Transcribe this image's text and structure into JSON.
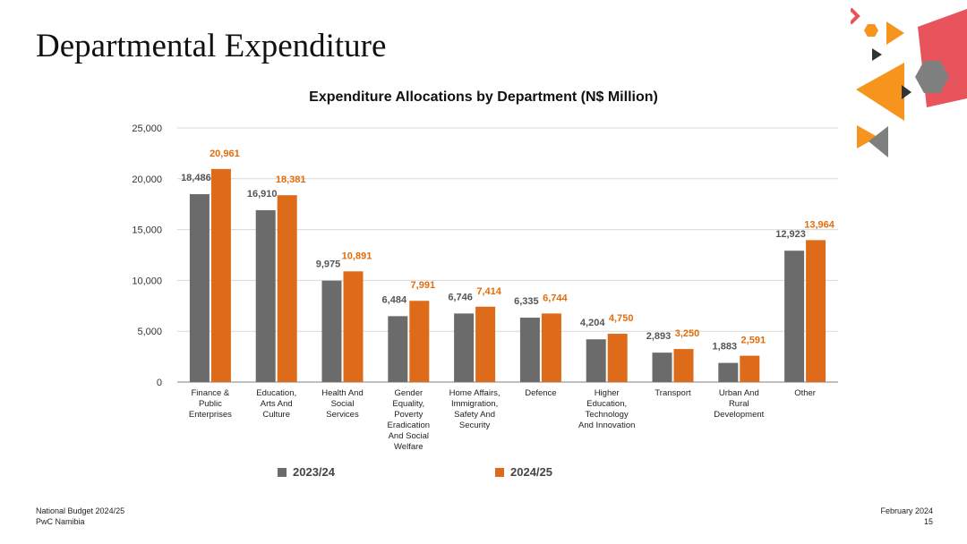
{
  "slide": {
    "title": "Departmental Expenditure",
    "footer_left_line1": "National Budget 2024/25",
    "footer_left_line2": "PwC Namibia",
    "footer_right_line1": "February 2024",
    "footer_right_line2": "15"
  },
  "colors": {
    "series_2023": "#6b6b6b",
    "series_2024": "#dd6b1a",
    "label_2023": "#555555",
    "label_2024": "#e36c0a",
    "grid": "#d9d9d9",
    "axis": "#7f7f7f",
    "decor_orange": "#f7941d",
    "decor_red": "#e8545c",
    "decor_gray": "#7f7f7f",
    "decor_dark": "#333333"
  },
  "chart_data": {
    "type": "bar",
    "title": "Expenditure Allocations by Department (N$ Million)",
    "xlabel": "",
    "ylabel": "",
    "ylim": [
      0,
      25000
    ],
    "yticks": [
      0,
      5000,
      10000,
      15000,
      20000,
      25000
    ],
    "ytick_labels": [
      "0",
      "5,000",
      "10,000",
      "15,000",
      "20,000",
      "25,000"
    ],
    "grid": true,
    "legend_position": "bottom",
    "categories": [
      [
        "Finance &",
        "Public",
        "Enterprises"
      ],
      [
        "Education,",
        "Arts And",
        "Culture"
      ],
      [
        "Health And",
        "Social",
        "Services"
      ],
      [
        "Gender",
        "Equality,",
        "Poverty",
        "Eradication",
        "And Social",
        "Welfare"
      ],
      [
        "Home Affairs,",
        "Immigration,",
        "Safety And",
        "Security"
      ],
      [
        "Defence"
      ],
      [
        "Higher",
        "Education,",
        "Technology",
        "And Innovation"
      ],
      [
        "Transport"
      ],
      [
        "Urban And",
        "Rural",
        "Development"
      ],
      [
        "Other"
      ]
    ],
    "series": [
      {
        "name": "2023/24",
        "values": [
          18486,
          16910,
          9975,
          6484,
          6746,
          6335,
          4204,
          2893,
          1883,
          12923
        ],
        "labels": [
          "18,486",
          "16,910",
          "9,975",
          "6,484",
          "6,746",
          "6,335",
          "4,204",
          "2,893",
          "1,883",
          "12,923"
        ]
      },
      {
        "name": "2024/25",
        "values": [
          20961,
          18381,
          10891,
          7991,
          7414,
          6744,
          4750,
          3250,
          2591,
          13964
        ],
        "labels": [
          "20,961",
          "18,381",
          "10,891",
          "7,991",
          "7,414",
          "6,744",
          "4,750",
          "3,250",
          "2,591",
          "13,964"
        ]
      }
    ]
  }
}
